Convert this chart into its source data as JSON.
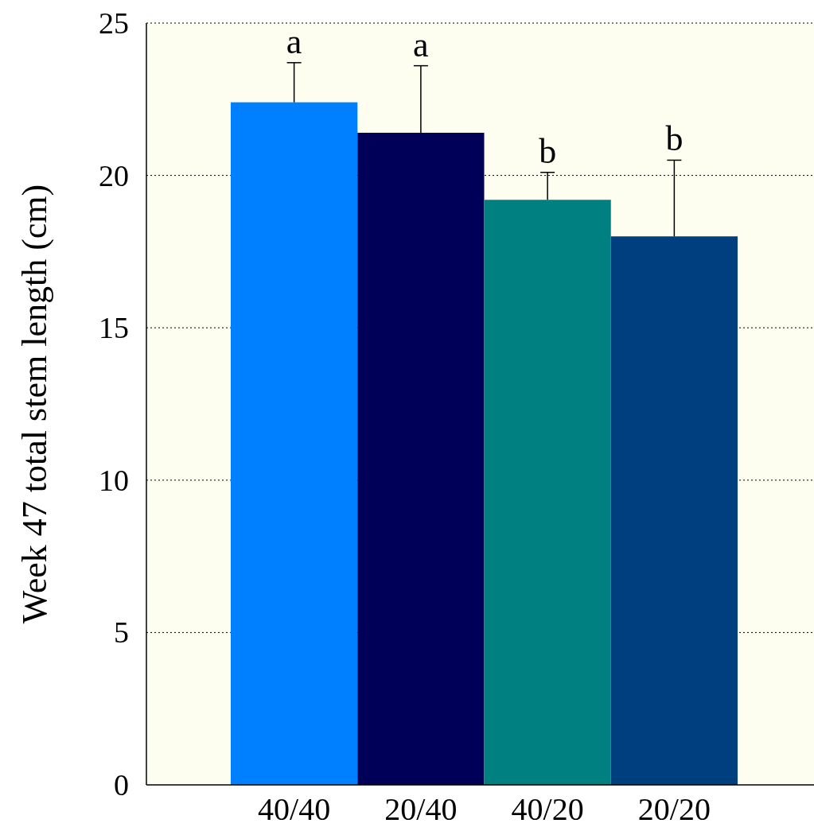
{
  "chart_data": {
    "type": "bar",
    "ylabel": "Week 47 total stem length (cm)",
    "categories": [
      "40/40",
      "20/40",
      "40/20",
      "20/20"
    ],
    "values": [
      22.4,
      21.4,
      19.2,
      18.0
    ],
    "colors": [
      "#0080ff",
      "#000058",
      "#008080",
      "#003f7f"
    ],
    "errors": [
      [
        22.4,
        23.7
      ],
      [
        21.4,
        23.6
      ],
      [
        19.2,
        20.1
      ],
      [
        18.0,
        20.5
      ]
    ],
    "ylim": [
      0,
      25
    ],
    "yticks": [
      0,
      5,
      10,
      15,
      20,
      25
    ],
    "grid": "y",
    "annotations": [
      {
        "text": "a",
        "x": "40/40",
        "y": 23.7
      },
      {
        "text": "a",
        "x": "20/40",
        "y": 23.6
      },
      {
        "text": "b",
        "x": "40/20",
        "y": 20.1
      },
      {
        "text": "b",
        "x": "20/20",
        "y": 20.5
      }
    ]
  }
}
